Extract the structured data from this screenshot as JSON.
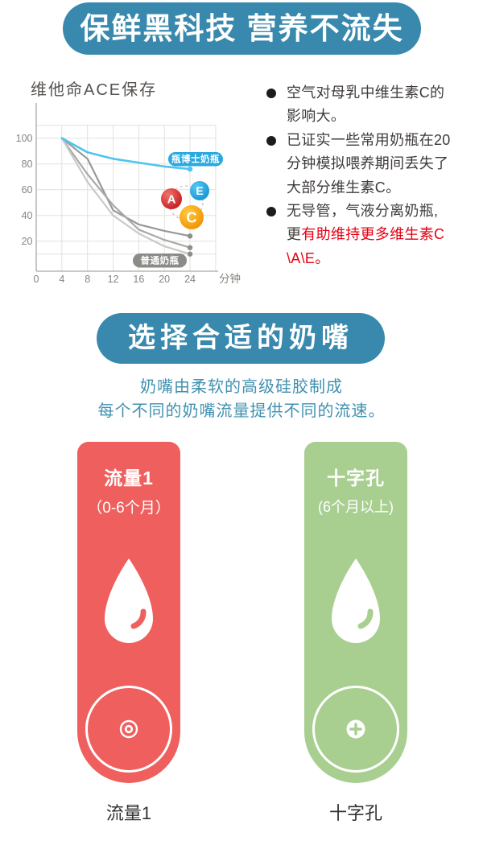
{
  "colors": {
    "banner_teal": "#3889ad",
    "intro_teal": "#4191b0",
    "dark_text": "#3f3b3a",
    "red_text": "#e60012",
    "footer_text": "#333333"
  },
  "banner1": {
    "label": "保鲜黑科技 营养不流失"
  },
  "bullets": [
    {
      "lines": [
        [
          {
            "text": "空气对母乳中维生素C的",
            "tone": "dark"
          }
        ],
        [
          {
            "text": "影响大。",
            "tone": "dark"
          }
        ]
      ]
    },
    {
      "lines": [
        [
          {
            "text": "已证实一些常用奶瓶在20",
            "tone": "dark"
          }
        ],
        [
          {
            "text": "分钟模拟喂养期间丢失了",
            "tone": "dark"
          }
        ],
        [
          {
            "text": "大部分维生素C。",
            "tone": "dark"
          }
        ]
      ]
    },
    {
      "lines": [
        [
          {
            "text": "无导管，气液分离奶瓶,",
            "tone": "dark"
          }
        ],
        [
          {
            "text": "更",
            "tone": "dark"
          },
          {
            "text": "有助维持更多维生素C",
            "tone": "red"
          }
        ],
        [
          {
            "text": "\\A\\E。",
            "tone": "red"
          }
        ]
      ]
    }
  ],
  "banner2": {
    "label": "选择合适的奶嘴"
  },
  "intro": {
    "line1": "奶嘴由柔软的高级硅胶制成",
    "line2": "每个不同的奶嘴流量提供不同的流速。"
  },
  "cards": [
    {
      "title": "流量1",
      "subtitle": "（0-6个月）",
      "color": "#ee5f5e",
      "hole_icon": "single-hole-icon",
      "footer": "流量1"
    },
    {
      "title": "十字孔",
      "subtitle": "(6个月以上)",
      "color": "#a8cf90",
      "hole_icon": "cross-hole-icon",
      "footer": "十字孔"
    }
  ],
  "chart_data": {
    "type": "line",
    "title": "维他命ACE保存",
    "xlabel": "分钟",
    "ylabel": "",
    "x_ticks": [
      0,
      4,
      8,
      12,
      16,
      20,
      24
    ],
    "y_ticks": [
      20,
      40,
      60,
      80,
      100
    ],
    "xlim": [
      0,
      28
    ],
    "ylim": [
      0,
      115
    ],
    "grid": true,
    "x": [
      4,
      8,
      12,
      16,
      20,
      24
    ],
    "series": [
      {
        "name": "瓶博士奶瓶",
        "color": "#4ec4f0",
        "values": [
          100,
          89,
          84,
          81,
          78,
          76
        ]
      },
      {
        "name": "普通奶瓶 1",
        "color": "#98989b",
        "values": [
          100,
          84,
          44,
          33,
          28,
          24
        ]
      },
      {
        "name": "普通奶瓶 2",
        "color": "#a9a9a7",
        "values": [
          100,
          72,
          48,
          29,
          21,
          15
        ]
      },
      {
        "name": "普通奶瓶 3",
        "color": "#c9c9c7",
        "values": [
          100,
          66,
          40,
          26,
          16,
          10
        ]
      }
    ],
    "labels": {
      "doctor_pill": "瓶博士奶瓶",
      "doctor_pill_bg": "#29a9e0",
      "ordinary_pill": "普通奶瓶",
      "ordinary_pill_bg": "#8b8b87"
    },
    "vitamin_badges": [
      {
        "letter": "A",
        "color": "#d7282f"
      },
      {
        "letter": "E",
        "color": "#29a9e0"
      },
      {
        "letter": "C",
        "color": "#f6a700"
      }
    ]
  }
}
